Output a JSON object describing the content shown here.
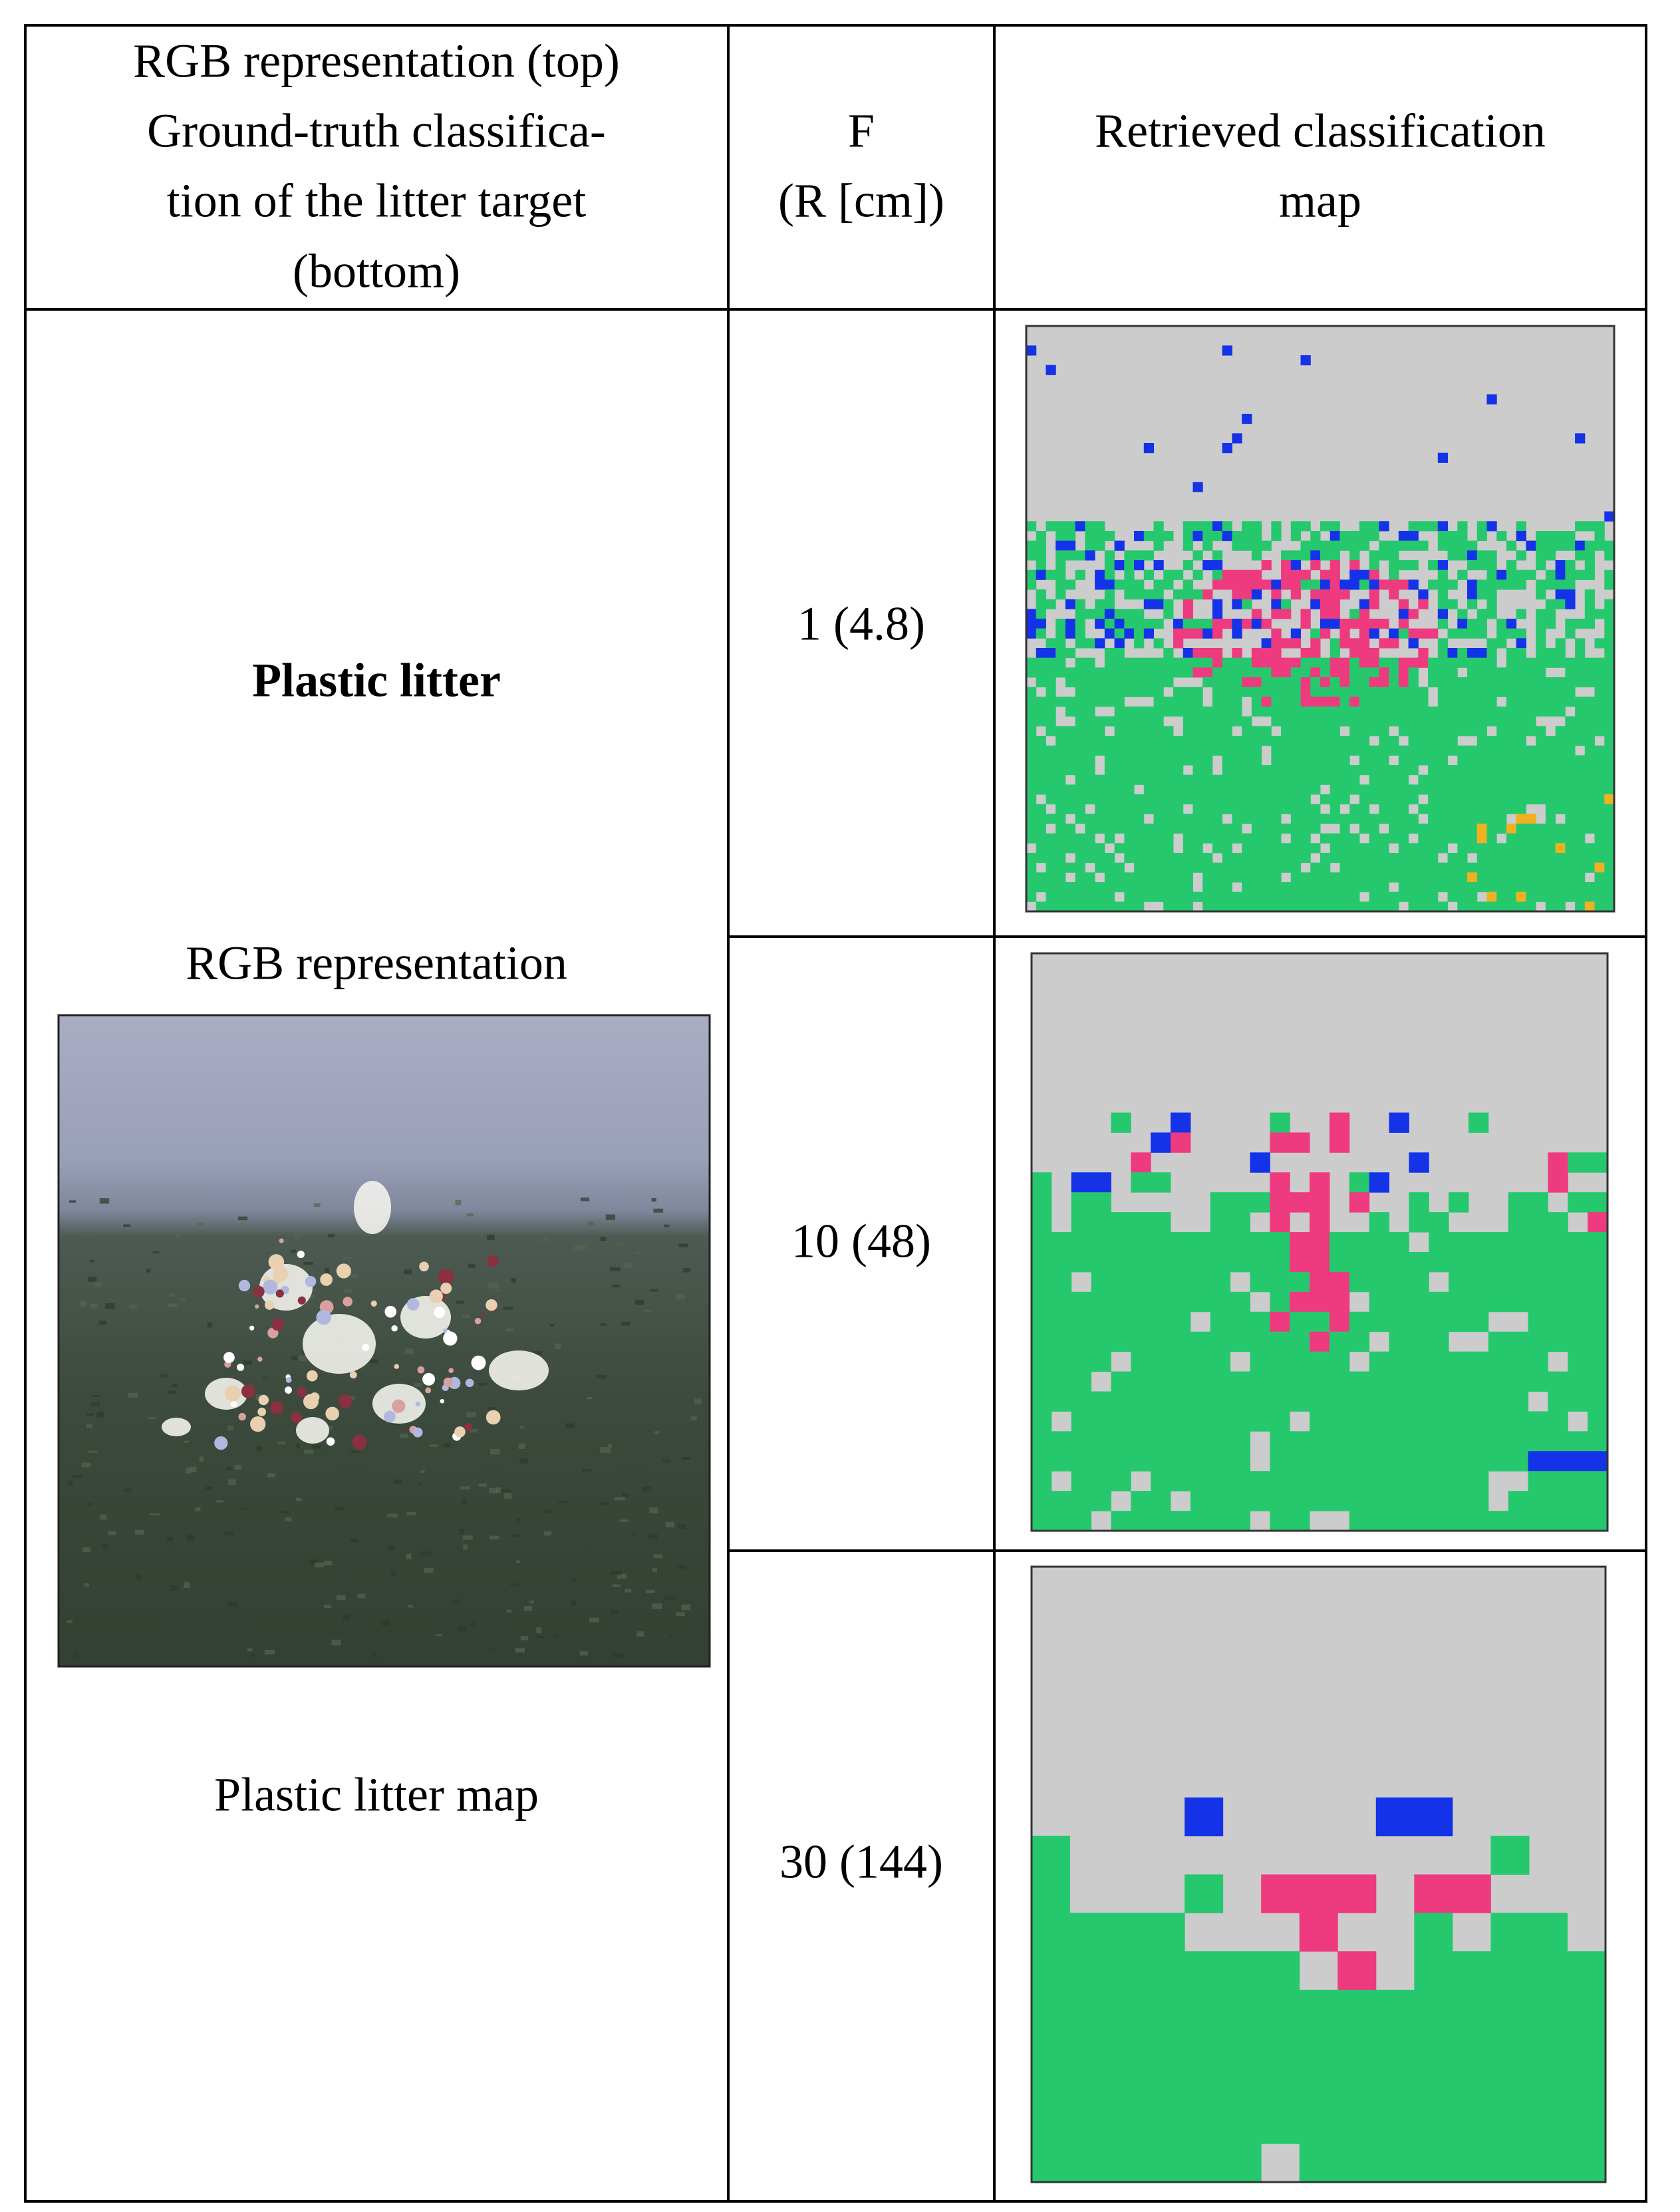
{
  "table": {
    "header": [
      [
        "RGB representation (top)",
        "Ground-truth classifica-",
        "tion of the litter target",
        "(bottom)"
      ],
      [
        "F",
        "(R [cm])"
      ],
      [
        "Retrieved classification",
        "map"
      ]
    ],
    "left": {
      "title": "Plastic litter",
      "top_caption": "RGB representation",
      "bottom_caption": "Plastic litter map"
    },
    "rows": [
      "1 (4.8)",
      "10 (48)",
      "30 (144)"
    ]
  }
}
